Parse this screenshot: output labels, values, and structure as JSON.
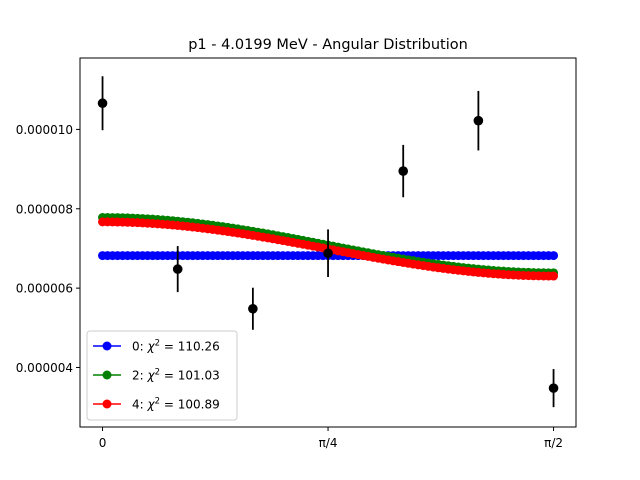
{
  "chart_data": {
    "type": "scatter",
    "title": "p1 - 4.0199 MeV - Angular Distribution",
    "xlabel": "",
    "ylabel": "",
    "xlim": [
      -0.0785,
      1.649
    ],
    "ylim": [
      2.5e-06,
      1.18e-05
    ],
    "x_ticks": [
      {
        "value": 0,
        "label": "0"
      },
      {
        "value": 0.7854,
        "label": "π/4"
      },
      {
        "value": 1.5708,
        "label": "π/2"
      }
    ],
    "y_ticks": [
      {
        "value": 4e-06,
        "label": "0.000004"
      },
      {
        "value": 6e-06,
        "label": "0.000006"
      },
      {
        "value": 8e-06,
        "label": "0.000008"
      },
      {
        "value": 1e-05,
        "label": "0.000010"
      }
    ],
    "data_points": {
      "name": "measured",
      "color": "#000000",
      "x": [
        0.0,
        0.2618,
        0.5236,
        0.7854,
        1.0472,
        1.309,
        1.5708
      ],
      "y": [
        1.066e-05,
        6.48e-06,
        5.48e-06,
        6.88e-06,
        8.95e-06,
        1.022e-05,
        3.48e-06
      ],
      "yerr": [
        6.8e-07,
        5.8e-07,
        5.3e-07,
        6e-07,
        6.6e-07,
        7.5e-07,
        4.8e-07
      ]
    },
    "series": [
      {
        "name": "0",
        "label": "0: χ² = 110.26",
        "label_prefix": "0: ",
        "chi2": "110.26",
        "color": "#0000ff",
        "model": "const",
        "a0": 6.82e-06,
        "a2": 0.0
      },
      {
        "name": "2",
        "label": "2: χ² = 101.03",
        "label_prefix": "2: ",
        "chi2": "101.03",
        "color": "#008000",
        "model": "legendre2",
        "a0": 6.85e-06,
        "a2": 9.3e-07
      },
      {
        "name": "4",
        "label": "4: χ² = 100.89",
        "label_prefix": "4: ",
        "chi2": "100.89",
        "color": "#ff0000",
        "model": "legendre2",
        "a0": 6.76e-06,
        "a2": 9.1e-07
      }
    ],
    "curve_samples": 91,
    "legend_position": "lower-left",
    "grid": false
  }
}
